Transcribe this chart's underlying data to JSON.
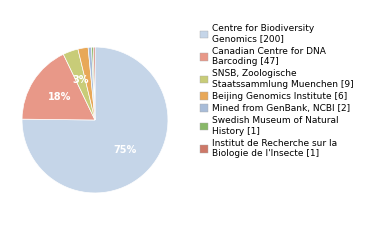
{
  "labels": [
    "Centre for Biodiversity\nGenomics [200]",
    "Canadian Centre for DNA\nBarcoding [47]",
    "SNSB, Zoologische\nStaatssammlung Muenchen [9]",
    "Beijing Genomics Institute [6]",
    "Mined from GenBank, NCBI [2]",
    "Swedish Museum of Natural\nHistory [1]",
    "Institut de Recherche sur la\nBiologie de l'Insecte [1]"
  ],
  "values": [
    200,
    47,
    9,
    6,
    2,
    1,
    1
  ],
  "colors": [
    "#c5d5e8",
    "#e89888",
    "#c8cc78",
    "#e8a858",
    "#a8bcd8",
    "#88b868",
    "#cd7868"
  ],
  "startangle": 90,
  "font_size": 7,
  "legend_fontsize": 6.5
}
